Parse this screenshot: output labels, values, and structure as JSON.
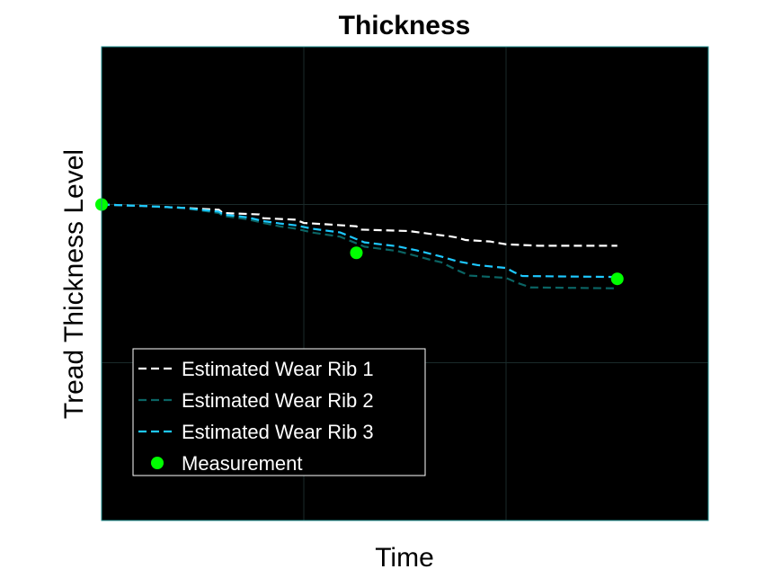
{
  "chart_data": {
    "type": "line",
    "title": "Thickness",
    "xlabel": "Time",
    "ylabel": "Tread Thickness Level",
    "xlim": [
      0,
      300
    ],
    "ylim": [
      0,
      100
    ],
    "grid": true,
    "tick_labels_visible": false,
    "x_grid_values": [
      100,
      200
    ],
    "y_grid_values": [
      33.3,
      66.7
    ],
    "background_color": "#000000",
    "grid_color": "#1a2a2a",
    "axes_border_color": "#1f8f8f",
    "legend_position": "bottom-left",
    "series": [
      {
        "name": "Estimated Wear Rib 1",
        "style": "dashed",
        "color": "#ffffff",
        "x": [
          0,
          20,
          40,
          58,
          60,
          78,
          80,
          96,
          100,
          112,
          126,
          128,
          152,
          166,
          172,
          176,
          180,
          192,
          200,
          216,
          230,
          255
        ],
        "y": [
          66.7,
          66.4,
          66.0,
          65.6,
          64.9,
          64.6,
          63.8,
          63.5,
          62.8,
          62.5,
          62.1,
          61.4,
          61.1,
          60.3,
          60.0,
          59.7,
          59.2,
          58.9,
          58.3,
          58.0,
          58.0,
          58.0
        ]
      },
      {
        "name": "Estimated Wear Rib 2",
        "style": "dashed",
        "color": "#0a6464",
        "x": [
          0,
          20,
          40,
          58,
          60,
          72,
          80,
          88,
          96,
          104,
          118,
          126,
          130,
          146,
          156,
          162,
          168,
          176,
          182,
          200,
          206,
          212,
          255
        ],
        "y": [
          66.7,
          66.4,
          66.0,
          64.9,
          64.3,
          63.6,
          62.8,
          62.1,
          61.6,
          60.8,
          59.9,
          58.5,
          57.8,
          56.9,
          55.8,
          55.1,
          54.5,
          52.8,
          51.7,
          51.2,
          50.1,
          49.2,
          49.0
        ]
      },
      {
        "name": "Estimated Wear Rib 3",
        "style": "dashed",
        "color": "#1ec8ff",
        "x": [
          0,
          20,
          40,
          58,
          60,
          72,
          80,
          88,
          96,
          104,
          118,
          126,
          130,
          146,
          156,
          168,
          176,
          186,
          200,
          204,
          208,
          255
        ],
        "y": [
          66.7,
          66.4,
          66.0,
          65.2,
          64.6,
          64.0,
          63.2,
          62.7,
          62.3,
          61.6,
          60.8,
          59.4,
          58.7,
          57.9,
          57.0,
          55.7,
          54.7,
          53.9,
          53.3,
          52.4,
          51.6,
          51.4
        ]
      },
      {
        "name": "Measurement",
        "style": "markers",
        "color": "#00ff00",
        "x": [
          0,
          126,
          255
        ],
        "y": [
          66.7,
          56.5,
          51.0
        ]
      }
    ]
  }
}
